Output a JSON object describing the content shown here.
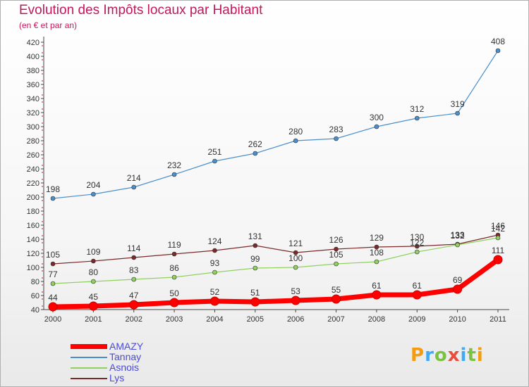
{
  "chart_data": {
    "type": "line",
    "title": "Evolution des Impôts locaux par Habitant",
    "subtitle": "(en € et par an)",
    "xlabel": "",
    "ylabel": "",
    "x": [
      "2000",
      "2001",
      "2002",
      "2003",
      "2004",
      "2005",
      "2006",
      "2007",
      "2008",
      "2009",
      "2010",
      "2011"
    ],
    "ylim": [
      40,
      420
    ],
    "yticks": [
      40,
      60,
      80,
      100,
      120,
      140,
      160,
      180,
      200,
      220,
      240,
      260,
      280,
      300,
      320,
      340,
      360,
      380,
      400,
      420
    ],
    "grid": false,
    "legend_position": "bottom-left",
    "series": [
      {
        "name": "AMAZY",
        "color": "#ff0000",
        "values": [
          44,
          45,
          47,
          50,
          52,
          51,
          53,
          55,
          61,
          61,
          69,
          111
        ]
      },
      {
        "name": "Tannay",
        "color": "#4a8fcc",
        "values": [
          198,
          204,
          214,
          232,
          251,
          262,
          280,
          283,
          300,
          312,
          319,
          408
        ]
      },
      {
        "name": "Asnois",
        "color": "#90d060",
        "values": [
          77,
          80,
          83,
          86,
          93,
          99,
          100,
          105,
          108,
          122,
          132,
          142
        ]
      },
      {
        "name": "Lys",
        "color": "#7a2a2a",
        "values": [
          105,
          109,
          114,
          119,
          124,
          131,
          121,
          126,
          129,
          130,
          133,
          146
        ]
      }
    ]
  },
  "branding": {
    "name": "Proxiti",
    "letters": [
      {
        "char": "P",
        "color": "#f39c12"
      },
      {
        "char": "r",
        "color": "#3fa9f5"
      },
      {
        "char": "o",
        "color": "#7cc242"
      },
      {
        "char": "x",
        "color": "#e74c3c"
      },
      {
        "char": "i",
        "color": "#3fa9f5"
      },
      {
        "char": "t",
        "color": "#7cc242"
      },
      {
        "char": "i",
        "color": "#f39c12"
      }
    ]
  }
}
